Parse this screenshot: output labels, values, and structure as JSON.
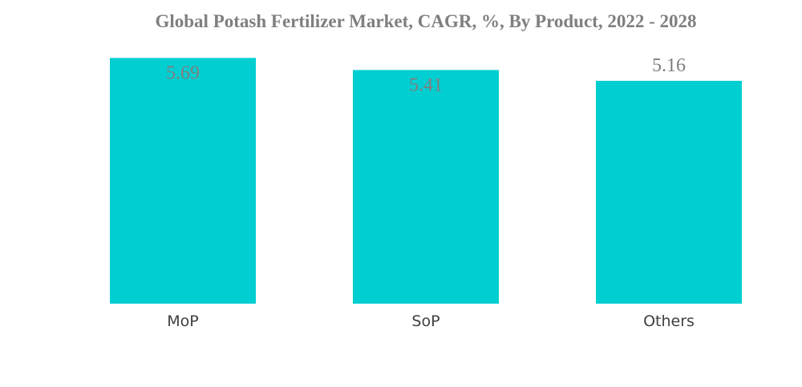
{
  "chart_data": {
    "type": "bar",
    "title": "Global Potash Fertilizer Market, CAGR, %, By Product, 2022 - 2028",
    "categories": [
      "MoP",
      "SoP",
      "Others"
    ],
    "values": [
      5.69,
      5.41,
      5.16
    ],
    "value_labels": [
      "5.69",
      "5.41",
      "5.16"
    ],
    "xlabel": "",
    "ylabel": "",
    "grid": false,
    "legend": "none",
    "bar_color": "#00CED1",
    "label_color": "#7f7f7f",
    "category_label_color": "#404040"
  }
}
